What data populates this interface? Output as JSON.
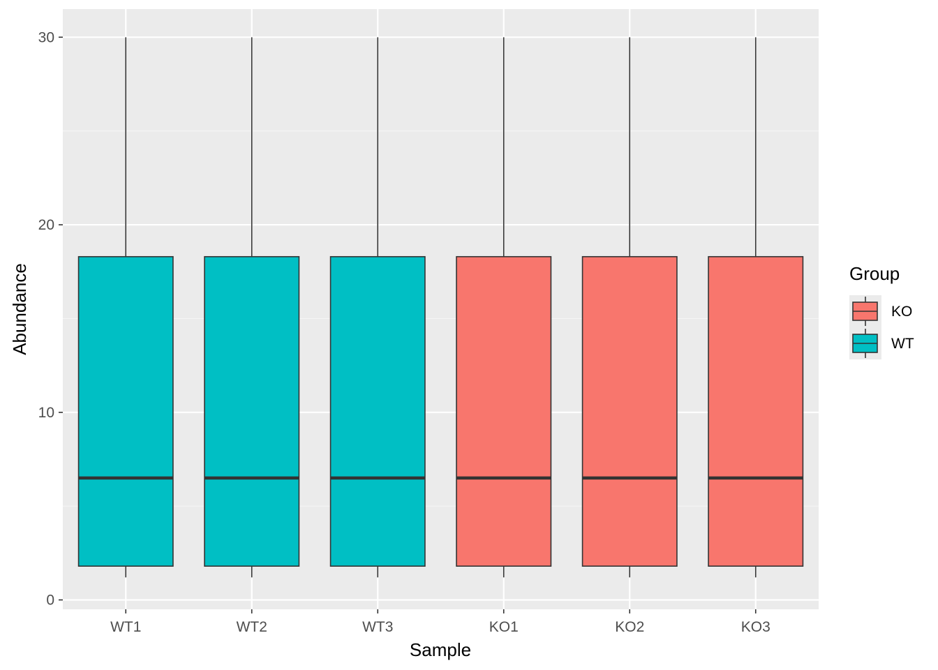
{
  "chart_data": {
    "type": "boxplot",
    "xlabel": "Sample",
    "ylabel": "Abundance",
    "ylim": [
      -0.5,
      31.5
    ],
    "y_ticks": [
      0,
      10,
      20,
      30
    ],
    "grid": true,
    "legend": {
      "title": "Group",
      "placement": "right",
      "entries": [
        {
          "label": "KO",
          "color": "#F8766D"
        },
        {
          "label": "WT",
          "color": "#00BFC4"
        }
      ]
    },
    "categories": [
      "WT1",
      "WT2",
      "WT3",
      "KO1",
      "KO2",
      "KO3"
    ],
    "groups": [
      "WT",
      "WT",
      "WT",
      "KO",
      "KO",
      "KO"
    ],
    "boxes": [
      {
        "sample": "WT1",
        "group": "WT",
        "min": 1.2,
        "q1": 1.8,
        "median": 6.5,
        "q3": 18.3,
        "max": 30
      },
      {
        "sample": "WT2",
        "group": "WT",
        "min": 1.2,
        "q1": 1.8,
        "median": 6.5,
        "q3": 18.3,
        "max": 30
      },
      {
        "sample": "WT3",
        "group": "WT",
        "min": 1.2,
        "q1": 1.8,
        "median": 6.5,
        "q3": 18.3,
        "max": 30
      },
      {
        "sample": "KO1",
        "group": "KO",
        "min": 1.2,
        "q1": 1.8,
        "median": 6.5,
        "q3": 18.3,
        "max": 30
      },
      {
        "sample": "KO2",
        "group": "KO",
        "min": 1.2,
        "q1": 1.8,
        "median": 6.5,
        "q3": 18.3,
        "max": 30
      },
      {
        "sample": "KO3",
        "group": "KO",
        "min": 1.2,
        "q1": 1.8,
        "median": 6.5,
        "q3": 18.3,
        "max": 30
      }
    ],
    "colors": {
      "panel_background": "#EBEBEB",
      "grid_major": "#FFFFFF",
      "grid_minor": "#F5F5F5",
      "WT": "#00BFC4",
      "KO": "#F8766D",
      "outline": "#333333"
    }
  }
}
